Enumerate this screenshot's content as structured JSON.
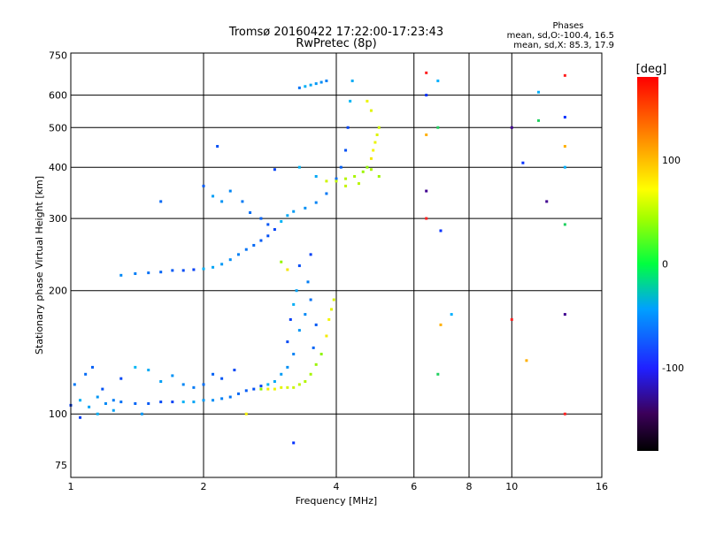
{
  "chart_data": {
    "type": "scatter",
    "title": "Tromsø 20160422 17:22:00-17:23:43",
    "subtitle": "RwPretec (8p)",
    "xlabel": "Frequency [MHz]",
    "ylabel": "Stationary phase Virtual Height [km]",
    "x_scale": "log2",
    "y_scale": "log",
    "xlim": [
      1,
      16
    ],
    "ylim": [
      70,
      760
    ],
    "x_ticks": [
      1,
      2,
      4,
      6,
      8,
      10,
      16
    ],
    "y_ticks": [
      75,
      100,
      200,
      300,
      400,
      500,
      600,
      750
    ],
    "grid_x": [
      2,
      4,
      6,
      8,
      10
    ],
    "grid_y": [
      100,
      200,
      300,
      400,
      500,
      600
    ],
    "phases": {
      "title": "Phases",
      "line_o": "mean, sd,O:-100.4, 16.5",
      "line_x": "mean, sd,X:  85.3, 17.9"
    },
    "colorbar": {
      "label": "[deg]",
      "range": [
        -180,
        180
      ],
      "ticks": [
        100,
        0,
        -100
      ],
      "tick_labels": [
        "100",
        "0",
        "-100"
      ]
    },
    "series": [
      {
        "mode": "O",
        "phase_mean": -100.4,
        "points": [
          [
            1.0,
            105
          ],
          [
            1.05,
            108
          ],
          [
            1.1,
            104
          ],
          [
            1.15,
            110
          ],
          [
            1.2,
            106
          ],
          [
            1.25,
            108
          ],
          [
            1.3,
            107
          ],
          [
            1.4,
            106
          ],
          [
            1.5,
            106
          ],
          [
            1.6,
            107
          ],
          [
            1.7,
            107
          ],
          [
            1.8,
            107
          ],
          [
            1.9,
            107
          ],
          [
            2.0,
            108
          ],
          [
            2.1,
            108
          ],
          [
            2.2,
            109
          ],
          [
            2.3,
            110
          ],
          [
            2.4,
            112
          ],
          [
            2.5,
            114
          ],
          [
            2.6,
            115
          ],
          [
            2.7,
            117
          ],
          [
            2.8,
            118
          ],
          [
            2.9,
            120
          ],
          [
            3.0,
            125
          ],
          [
            3.1,
            130
          ],
          [
            3.2,
            140
          ],
          [
            1.02,
            118
          ],
          [
            1.08,
            125
          ],
          [
            1.12,
            130
          ],
          [
            1.18,
            115
          ],
          [
            1.3,
            122
          ],
          [
            1.4,
            130
          ],
          [
            1.5,
            128
          ],
          [
            1.6,
            120
          ],
          [
            1.7,
            124
          ],
          [
            1.8,
            118
          ],
          [
            1.9,
            116
          ],
          [
            2.0,
            118
          ],
          [
            2.1,
            125
          ],
          [
            2.2,
            122
          ],
          [
            2.35,
            128
          ],
          [
            1.05,
            98
          ],
          [
            1.15,
            100
          ],
          [
            1.25,
            102
          ],
          [
            1.45,
            100
          ],
          [
            1.3,
            218
          ],
          [
            1.4,
            220
          ],
          [
            1.5,
            221
          ],
          [
            1.6,
            222
          ],
          [
            1.7,
            224
          ],
          [
            1.8,
            224
          ],
          [
            1.9,
            225
          ],
          [
            2.0,
            226
          ],
          [
            2.1,
            228
          ],
          [
            2.2,
            232
          ],
          [
            2.3,
            238
          ],
          [
            2.4,
            245
          ],
          [
            2.5,
            252
          ],
          [
            2.6,
            258
          ],
          [
            2.7,
            265
          ],
          [
            2.8,
            272
          ],
          [
            2.9,
            282
          ],
          [
            3.0,
            295
          ],
          [
            3.1,
            305
          ],
          [
            3.2,
            312
          ],
          [
            3.4,
            318
          ],
          [
            3.6,
            328
          ],
          [
            3.8,
            345
          ],
          [
            4.0,
            375
          ],
          [
            4.1,
            400
          ],
          [
            4.2,
            440
          ],
          [
            4.25,
            500
          ],
          [
            4.3,
            580
          ],
          [
            4.35,
            650
          ],
          [
            2.1,
            340
          ],
          [
            2.2,
            330
          ],
          [
            2.3,
            350
          ],
          [
            2.45,
            330
          ],
          [
            2.55,
            310
          ],
          [
            2.7,
            300
          ],
          [
            2.8,
            290
          ],
          [
            3.1,
            150
          ],
          [
            3.15,
            170
          ],
          [
            3.2,
            185
          ],
          [
            3.25,
            200
          ],
          [
            3.3,
            160
          ],
          [
            3.4,
            175
          ],
          [
            3.45,
            210
          ],
          [
            3.5,
            190
          ],
          [
            3.55,
            145
          ],
          [
            3.6,
            165
          ],
          [
            3.3,
            230
          ],
          [
            3.5,
            245
          ],
          [
            3.4,
            630
          ],
          [
            3.5,
            635
          ],
          [
            3.6,
            640
          ],
          [
            3.7,
            645
          ],
          [
            3.8,
            650
          ],
          [
            3.3,
            625
          ],
          [
            1.6,
            330
          ],
          [
            2.0,
            360
          ],
          [
            2.15,
            450
          ],
          [
            2.9,
            395
          ],
          [
            3.3,
            400
          ],
          [
            3.6,
            380
          ]
        ]
      },
      {
        "mode": "X",
        "phase_mean": 85.3,
        "points": [
          [
            2.7,
            115
          ],
          [
            2.8,
            115
          ],
          [
            2.9,
            115
          ],
          [
            3.0,
            116
          ],
          [
            3.1,
            116
          ],
          [
            3.2,
            116
          ],
          [
            3.3,
            118
          ],
          [
            3.4,
            120
          ],
          [
            3.5,
            125
          ],
          [
            3.6,
            132
          ],
          [
            3.7,
            140
          ],
          [
            3.8,
            155
          ],
          [
            3.85,
            170
          ],
          [
            3.9,
            180
          ],
          [
            3.95,
            190
          ],
          [
            3.8,
            370
          ],
          [
            4.0,
            370
          ],
          [
            4.2,
            375
          ],
          [
            4.4,
            380
          ],
          [
            4.6,
            390
          ],
          [
            4.7,
            400
          ],
          [
            4.8,
            420
          ],
          [
            4.85,
            440
          ],
          [
            4.9,
            460
          ],
          [
            4.95,
            480
          ],
          [
            5.0,
            500
          ],
          [
            4.2,
            360
          ],
          [
            4.5,
            365
          ],
          [
            4.8,
            395
          ],
          [
            5.0,
            380
          ],
          [
            3.0,
            235
          ],
          [
            3.1,
            225
          ],
          [
            2.5,
            100
          ],
          [
            4.7,
            580
          ],
          [
            4.8,
            550
          ]
        ]
      },
      {
        "mode": "scattered",
        "points": [
          [
            6.4,
            680
          ],
          [
            6.4,
            600
          ],
          [
            6.4,
            480
          ],
          [
            6.8,
            650
          ],
          [
            6.8,
            500
          ],
          [
            6.4,
            350
          ],
          [
            6.4,
            300
          ],
          [
            6.9,
            280
          ],
          [
            6.9,
            165
          ],
          [
            7.3,
            175
          ],
          [
            6.8,
            125
          ],
          [
            10.0,
            500
          ],
          [
            10.0,
            170
          ],
          [
            10.6,
            410
          ],
          [
            10.8,
            135
          ],
          [
            11.5,
            610
          ],
          [
            11.5,
            520
          ],
          [
            12.0,
            330
          ],
          [
            13.2,
            670
          ],
          [
            13.2,
            530
          ],
          [
            13.2,
            450
          ],
          [
            13.2,
            400
          ],
          [
            13.2,
            290
          ],
          [
            13.2,
            175
          ],
          [
            13.2,
            100
          ],
          [
            3.2,
            85
          ]
        ]
      }
    ]
  }
}
